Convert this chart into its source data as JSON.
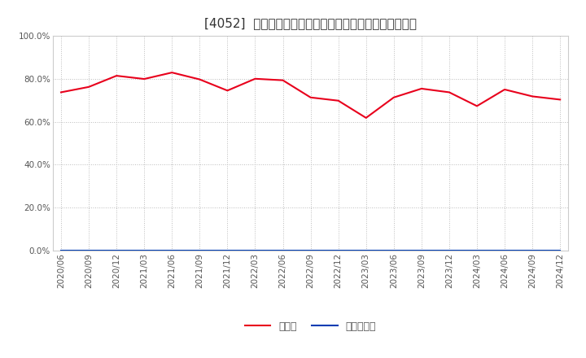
{
  "title": "[4052]  現預金、有利子負債の総資産に対する比率の推移",
  "x_labels": [
    "2020/06",
    "2020/09",
    "2020/12",
    "2021/03",
    "2021/06",
    "2021/09",
    "2021/12",
    "2022/03",
    "2022/06",
    "2022/09",
    "2022/12",
    "2023/03",
    "2023/06",
    "2023/09",
    "2023/12",
    "2024/03",
    "2024/06",
    "2024/09",
    "2024/12"
  ],
  "cash_values": [
    0.737,
    0.762,
    0.814,
    0.799,
    0.829,
    0.797,
    0.745,
    0.8,
    0.793,
    0.713,
    0.698,
    0.618,
    0.713,
    0.754,
    0.737,
    0.673,
    0.75,
    0.718,
    0.703
  ],
  "debt_values": [
    0.0,
    0.0,
    0.0,
    0.0,
    0.0,
    0.0,
    0.0,
    0.0,
    0.0,
    0.0,
    0.0,
    0.0,
    0.0,
    0.0,
    0.0,
    0.0,
    0.0,
    0.0,
    0.0
  ],
  "cash_color": "#e8001c",
  "debt_color": "#003cb3",
  "cash_label": "現預金",
  "debt_label": "有利子負債",
  "ylim": [
    0.0,
    1.0
  ],
  "yticks": [
    0.0,
    0.2,
    0.4,
    0.6,
    0.8,
    1.0
  ],
  "bg_color": "#ffffff",
  "grid_color": "#bbbbbb",
  "title_fontsize": 11,
  "legend_fontsize": 9,
  "tick_fontsize": 7.5
}
